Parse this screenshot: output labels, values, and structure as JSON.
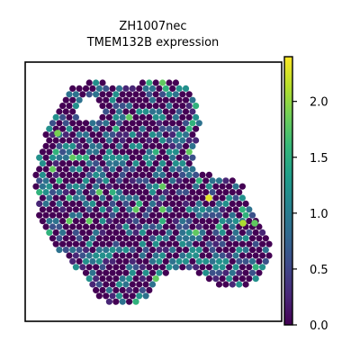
{
  "chart_data": {
    "type": "scatter",
    "subtype": "spatial-expression",
    "title_line1": "ZH1007nec",
    "title_line2": "TMEM132B expression",
    "xlabel": "",
    "ylabel": "",
    "axes_ticks": "none",
    "grid": false,
    "colormap": "viridis",
    "colorbar": {
      "range": [
        0.0,
        2.4
      ],
      "ticks": [
        0.0,
        0.5,
        1.0,
        1.5,
        2.0
      ],
      "tick_labels": [
        "0.0",
        "0.5",
        "1.0",
        "1.5",
        "2.0"
      ],
      "placement": "right"
    },
    "value_distribution": {
      "dominant_levels": [
        0.0,
        0.9,
        1.2
      ],
      "high_spots": [
        2.3,
        2.1,
        1.9,
        1.8
      ]
    },
    "colors": {
      "viridis_low": "#440154",
      "viridis_mid": "#21918c",
      "viridis_high": "#fde725"
    }
  }
}
